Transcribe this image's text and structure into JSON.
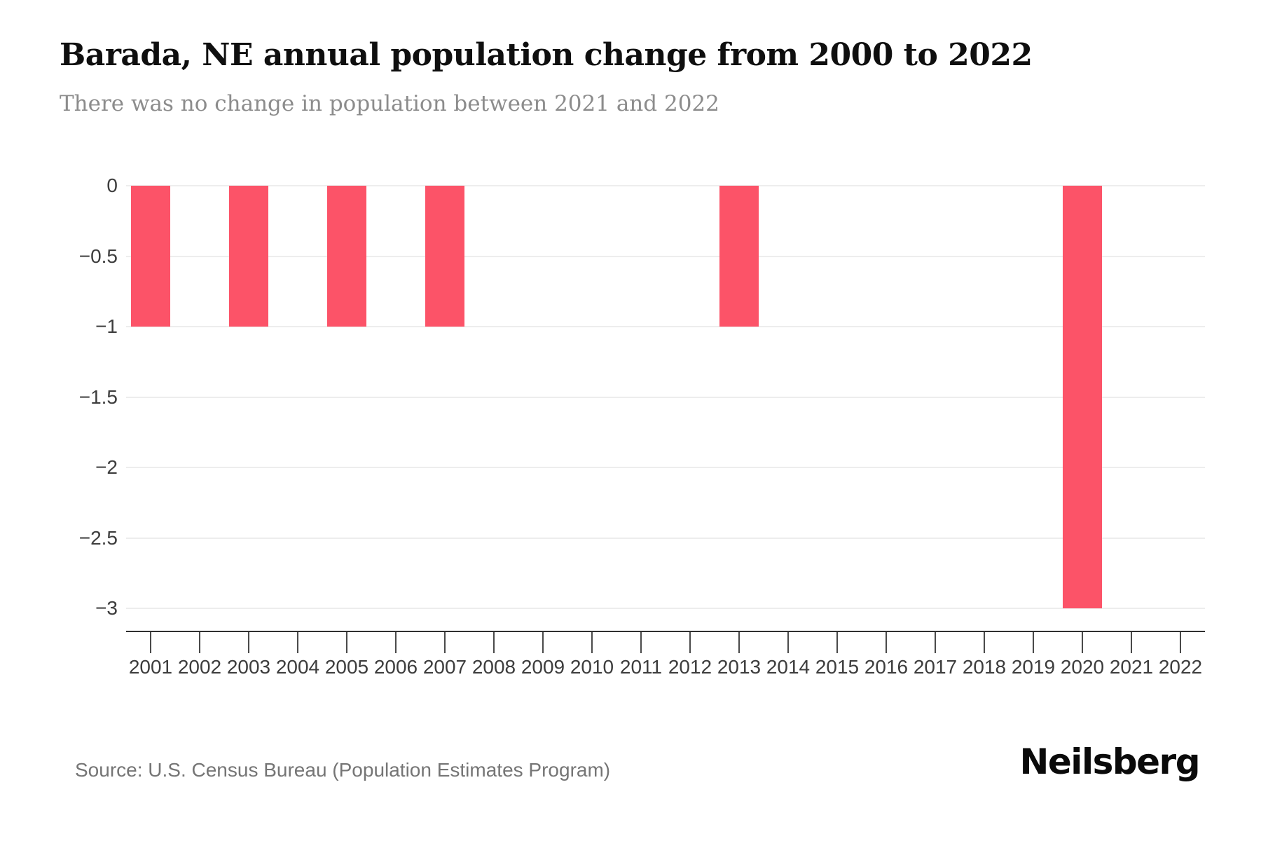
{
  "header": {
    "title": "Barada, NE annual population change from 2000 to 2022",
    "subtitle": "There was no change in population between 2021 and 2022"
  },
  "footer": {
    "source": "Source: U.S. Census Bureau (Population Estimates Program)",
    "brand": "Neilsberg"
  },
  "colors": {
    "bar": "#fc5368",
    "grid": "#ededed",
    "axis_line": "#2f2f2f",
    "tick": "#4a4a4a",
    "tick_label": "#3d3d3d",
    "title": "#0f0f0f",
    "subtitle": "#8c8c8c",
    "source": "#757575"
  },
  "chart_data": {
    "type": "bar",
    "title": "Barada, NE annual population change from 2000 to 2022",
    "subtitle": "There was no change in population between 2021 and 2022",
    "xlabel": "",
    "ylabel": "",
    "categories": [
      "2001",
      "2002",
      "2003",
      "2004",
      "2005",
      "2006",
      "2007",
      "2008",
      "2009",
      "2010",
      "2011",
      "2012",
      "2013",
      "2014",
      "2015",
      "2016",
      "2017",
      "2018",
      "2019",
      "2020",
      "2021",
      "2022"
    ],
    "values": [
      -1,
      0,
      -1,
      0,
      -1,
      0,
      -1,
      0,
      0,
      0,
      0,
      0,
      -1,
      0,
      0,
      0,
      0,
      0,
      0,
      -3,
      0,
      0
    ],
    "ylim": [
      -3,
      0
    ],
    "y_ticks": [
      0,
      -0.5,
      -1,
      -1.5,
      -2,
      -2.5,
      -3
    ],
    "y_tick_labels": [
      "0",
      "−0.5",
      "−1",
      "−1.5",
      "−2",
      "−2.5",
      "−3"
    ],
    "grid": true,
    "legend": false,
    "bar_color": "#fc5368"
  }
}
